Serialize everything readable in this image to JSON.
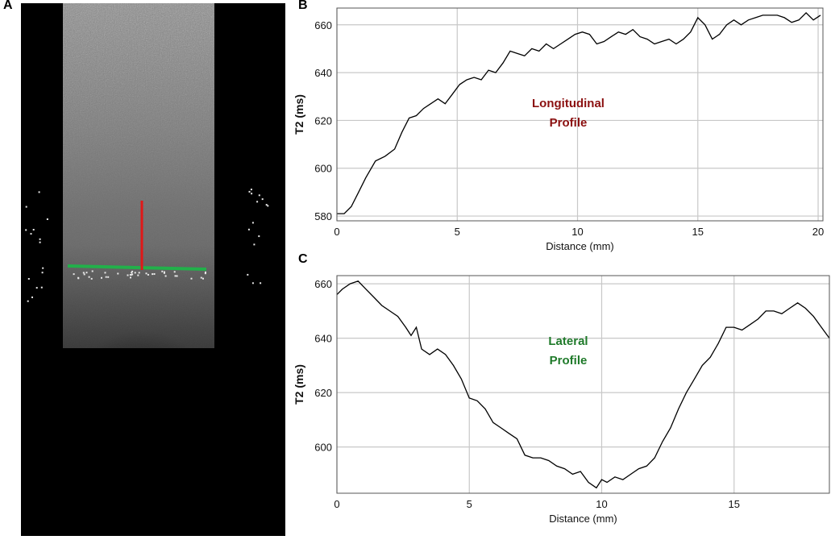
{
  "figure": {
    "panel_a_label": "A",
    "panel_b_label": "B",
    "panel_c_label": "C",
    "colors": {
      "longitudinal_line": "#e01818",
      "lateral_line": "#22b04a",
      "longitudinal_annotation": "#8b1010",
      "lateral_annotation": "#1f7a2a",
      "series": "#000000",
      "grid": "#c8c8c8"
    }
  },
  "chart_data": [
    {
      "id": "B",
      "type": "line",
      "title": "",
      "xlabel": "Distance (mm)",
      "ylabel": "T2 (ms)",
      "xlim": [
        0,
        20.2
      ],
      "ylim": [
        578,
        667
      ],
      "xticks": [
        0,
        5,
        10,
        15,
        20
      ],
      "yticks": [
        580,
        600,
        620,
        640,
        660
      ],
      "grid": true,
      "annotation": [
        "Longitudinal",
        "Profile"
      ],
      "annotation_color": "#8b1010",
      "series": [
        {
          "x": [
            0,
            0.3,
            0.6,
            0.9,
            1.2,
            1.6,
            2.0,
            2.4,
            2.7,
            3.0,
            3.3,
            3.6,
            3.9,
            4.2,
            4.5,
            4.8,
            5.1,
            5.4,
            5.7,
            6.0,
            6.3,
            6.6,
            6.9,
            7.2,
            7.5,
            7.8,
            8.1,
            8.4,
            8.7,
            9.0,
            9.3,
            9.6,
            9.9,
            10.2,
            10.5,
            10.8,
            11.1,
            11.4,
            11.7,
            12.0,
            12.3,
            12.6,
            12.9,
            13.2,
            13.5,
            13.8,
            14.1,
            14.4,
            14.7,
            15.0,
            15.3,
            15.6,
            15.9,
            16.2,
            16.5,
            16.8,
            17.1,
            17.4,
            17.7,
            18.0,
            18.3,
            18.6,
            18.9,
            19.2,
            19.5,
            19.8,
            20.1
          ],
          "y": [
            581,
            581,
            584,
            590,
            596,
            603,
            605,
            608,
            615,
            621,
            622,
            625,
            627,
            629,
            627,
            631,
            635,
            637,
            638,
            637,
            641,
            640,
            644,
            649,
            648,
            647,
            650,
            649,
            652,
            650,
            652,
            654,
            656,
            657,
            656,
            652,
            653,
            655,
            657,
            656,
            658,
            655,
            654,
            652,
            653,
            654,
            652,
            654,
            657,
            663,
            660,
            654,
            656,
            660,
            662,
            660,
            662,
            663,
            664,
            664,
            664,
            663,
            661,
            662,
            665,
            662,
            664
          ]
        }
      ]
    },
    {
      "id": "C",
      "type": "line",
      "title": "",
      "xlabel": "Distance (mm)",
      "ylabel": "T2 (ms)",
      "xlim": [
        0,
        18.6
      ],
      "ylim": [
        583,
        663
      ],
      "xticks": [
        0,
        5,
        10,
        15
      ],
      "yticks": [
        600,
        620,
        640,
        660
      ],
      "grid": true,
      "annotation": [
        "Lateral",
        "Profile"
      ],
      "annotation_color": "#1f7a2a",
      "series": [
        {
          "x": [
            0,
            0.2,
            0.5,
            0.8,
            1.1,
            1.4,
            1.7,
            2.0,
            2.3,
            2.6,
            2.8,
            3.0,
            3.2,
            3.5,
            3.8,
            4.1,
            4.4,
            4.7,
            5.0,
            5.3,
            5.6,
            5.9,
            6.2,
            6.5,
            6.8,
            7.1,
            7.4,
            7.7,
            8.0,
            8.3,
            8.6,
            8.9,
            9.2,
            9.5,
            9.8,
            10.0,
            10.2,
            10.5,
            10.8,
            11.1,
            11.4,
            11.7,
            12.0,
            12.3,
            12.6,
            12.9,
            13.2,
            13.5,
            13.8,
            14.1,
            14.4,
            14.7,
            15.0,
            15.3,
            15.6,
            15.9,
            16.2,
            16.5,
            16.8,
            17.1,
            17.4,
            17.7,
            18.0,
            18.3,
            18.6
          ],
          "y": [
            656,
            658,
            660,
            661,
            658,
            655,
            652,
            650,
            648,
            644,
            641,
            644,
            636,
            634,
            636,
            634,
            630,
            625,
            618,
            617,
            614,
            609,
            607,
            605,
            603,
            597,
            596,
            596,
            595,
            593,
            592,
            590,
            591,
            587,
            585,
            588,
            587,
            589,
            588,
            590,
            592,
            593,
            596,
            602,
            607,
            614,
            620,
            625,
            630,
            633,
            638,
            644,
            644,
            643,
            645,
            647,
            650,
            650,
            649,
            651,
            653,
            651,
            648,
            644,
            640
          ]
        }
      ]
    }
  ]
}
